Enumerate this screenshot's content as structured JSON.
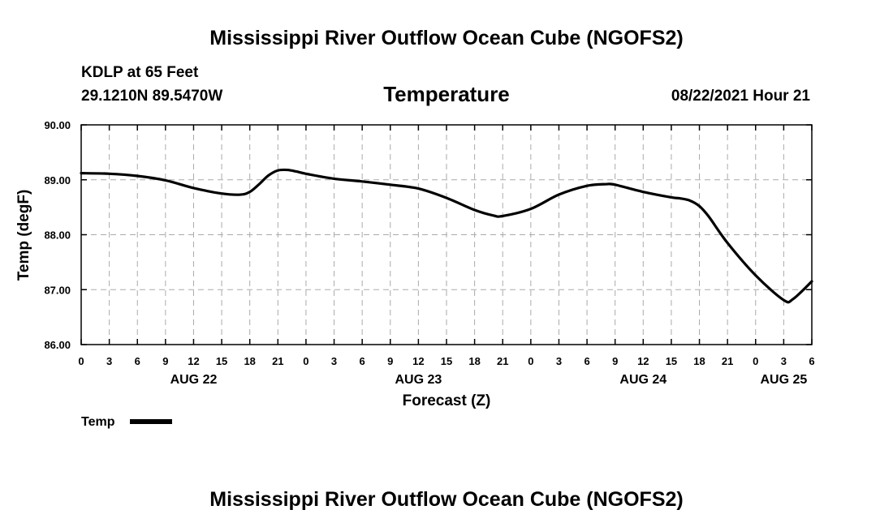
{
  "header": {
    "title": "Mississippi River Outflow Ocean Cube (NGOFS2)",
    "station": "KDLP at 65 Feet",
    "location": "29.1210N  89.5470W",
    "variable": "Temperature",
    "timestamp": "08/22/2021 Hour 21"
  },
  "footer": {
    "title": "Mississippi River Outflow Ocean Cube (NGOFS2)"
  },
  "chart_data": {
    "type": "line",
    "title": "Temperature",
    "xlabel": "Forecast (Z)",
    "ylabel": "Temp (degF)",
    "ylim": [
      86.0,
      90.0
    ],
    "xlim": [
      0,
      78
    ],
    "grid": true,
    "yticks": [
      {
        "value": 86.0,
        "label": "86.00"
      },
      {
        "value": 87.0,
        "label": "87.00"
      },
      {
        "value": 88.0,
        "label": "88.00"
      },
      {
        "value": 89.0,
        "label": "89.00"
      },
      {
        "value": 90.0,
        "label": "90.00"
      }
    ],
    "xticks": [
      {
        "value": 0,
        "label": "0"
      },
      {
        "value": 3,
        "label": "3"
      },
      {
        "value": 6,
        "label": "6"
      },
      {
        "value": 9,
        "label": "9"
      },
      {
        "value": 12,
        "label": "12"
      },
      {
        "value": 15,
        "label": "15"
      },
      {
        "value": 18,
        "label": "18"
      },
      {
        "value": 21,
        "label": "21"
      },
      {
        "value": 24,
        "label": "0"
      },
      {
        "value": 27,
        "label": "3"
      },
      {
        "value": 30,
        "label": "6"
      },
      {
        "value": 33,
        "label": "9"
      },
      {
        "value": 36,
        "label": "12"
      },
      {
        "value": 39,
        "label": "15"
      },
      {
        "value": 42,
        "label": "18"
      },
      {
        "value": 45,
        "label": "21"
      },
      {
        "value": 48,
        "label": "0"
      },
      {
        "value": 51,
        "label": "3"
      },
      {
        "value": 54,
        "label": "6"
      },
      {
        "value": 57,
        "label": "9"
      },
      {
        "value": 60,
        "label": "12"
      },
      {
        "value": 63,
        "label": "15"
      },
      {
        "value": 66,
        "label": "18"
      },
      {
        "value": 69,
        "label": "21"
      },
      {
        "value": 72,
        "label": "0"
      },
      {
        "value": 75,
        "label": "3"
      },
      {
        "value": 78,
        "label": "6"
      }
    ],
    "date_labels": [
      {
        "value": 12,
        "label": "AUG 22"
      },
      {
        "value": 36,
        "label": "AUG 23"
      },
      {
        "value": 60,
        "label": "AUG 24"
      },
      {
        "value": 75,
        "label": "AUG 25"
      }
    ],
    "legend": {
      "position": "bottom-left",
      "entries": [
        "Temp"
      ]
    },
    "series": [
      {
        "name": "Temp",
        "color": "#000000",
        "x": [
          0,
          3,
          6,
          9,
          12,
          15,
          17,
          18,
          19,
          20,
          21,
          22,
          23,
          24,
          27,
          30,
          33,
          36,
          39,
          42,
          44,
          45,
          48,
          51,
          54,
          56,
          57,
          60,
          63,
          64,
          65,
          66,
          67,
          69,
          72,
          75,
          76,
          78
        ],
        "values": [
          89.12,
          89.11,
          89.07,
          88.99,
          88.85,
          88.75,
          88.73,
          88.78,
          88.92,
          89.08,
          89.17,
          89.18,
          89.15,
          89.11,
          89.02,
          88.97,
          88.91,
          88.84,
          88.67,
          88.45,
          88.35,
          88.34,
          88.47,
          88.73,
          88.89,
          88.92,
          88.91,
          88.78,
          88.68,
          88.66,
          88.62,
          88.52,
          88.33,
          87.85,
          87.26,
          86.81,
          86.83,
          87.15
        ]
      }
    ]
  }
}
